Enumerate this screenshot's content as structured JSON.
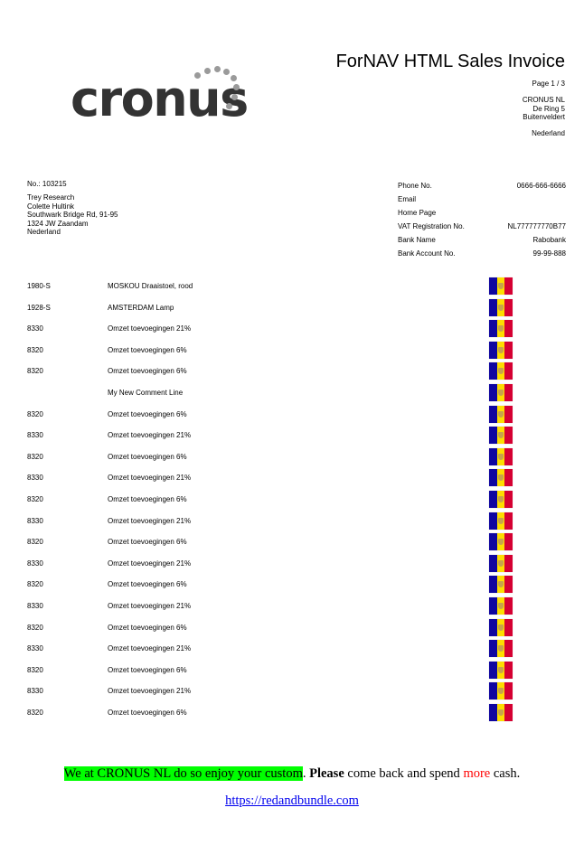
{
  "header": {
    "title": "ForNAV HTML Sales Invoice",
    "page": "Page 1 / 3",
    "logo_text": "cronus"
  },
  "company": {
    "name": "CRONUS NL",
    "address": "De Ring 5",
    "city": "Buitenveldert",
    "country": "Nederland"
  },
  "invoice": {
    "number_label": "No.: 103215"
  },
  "customer": {
    "name": "Trey Research",
    "contact": "Colette Hultink",
    "address": "Southwark Bridge Rd, 91-95",
    "postcode_city": "1324 JW Zaandam",
    "country": "Nederland"
  },
  "company_info": [
    {
      "label": "Phone No.",
      "value": "0666-666-6666"
    },
    {
      "label": "Email",
      "value": ""
    },
    {
      "label": "Home Page",
      "value": ""
    },
    {
      "label": "VAT Registration No.",
      "value": "NL777777770B77"
    },
    {
      "label": "Bank Name",
      "value": "Rabobank"
    },
    {
      "label": "Bank Account No.",
      "value": "99-99-888"
    }
  ],
  "lines": [
    {
      "no": "1980-S",
      "description": "MOSKOU Draaistoel, rood",
      "flag": "andorra-flag"
    },
    {
      "no": "1928-S",
      "description": "AMSTERDAM Lamp",
      "flag": "andorra-flag"
    },
    {
      "no": "8330",
      "description": "Omzet toevoegingen 21%",
      "flag": "andorra-flag"
    },
    {
      "no": "8320",
      "description": "Omzet toevoegingen 6%",
      "flag": "andorra-flag"
    },
    {
      "no": "8320",
      "description": "Omzet toevoegingen 6%",
      "flag": "andorra-flag"
    },
    {
      "no": "",
      "description": "My New Comment Line",
      "flag": "andorra-flag"
    },
    {
      "no": "8320",
      "description": "Omzet toevoegingen 6%",
      "flag": "andorra-flag"
    },
    {
      "no": "8330",
      "description": "Omzet toevoegingen 21%",
      "flag": "andorra-flag"
    },
    {
      "no": "8320",
      "description": "Omzet toevoegingen 6%",
      "flag": "andorra-flag"
    },
    {
      "no": "8330",
      "description": "Omzet toevoegingen 21%",
      "flag": "andorra-flag"
    },
    {
      "no": "8320",
      "description": "Omzet toevoegingen 6%",
      "flag": "andorra-flag"
    },
    {
      "no": "8330",
      "description": "Omzet toevoegingen 21%",
      "flag": "andorra-flag"
    },
    {
      "no": "8320",
      "description": "Omzet toevoegingen 6%",
      "flag": "andorra-flag"
    },
    {
      "no": "8330",
      "description": "Omzet toevoegingen 21%",
      "flag": "andorra-flag"
    },
    {
      "no": "8320",
      "description": "Omzet toevoegingen 6%",
      "flag": "andorra-flag"
    },
    {
      "no": "8330",
      "description": "Omzet toevoegingen 21%",
      "flag": "andorra-flag"
    },
    {
      "no": "8320",
      "description": "Omzet toevoegingen 6%",
      "flag": "andorra-flag"
    },
    {
      "no": "8330",
      "description": "Omzet toevoegingen 21%",
      "flag": "andorra-flag"
    },
    {
      "no": "8320",
      "description": "Omzet toevoegingen 6%",
      "flag": "andorra-flag"
    },
    {
      "no": "8330",
      "description": "Omzet toevoegingen 21%",
      "flag": "andorra-flag"
    },
    {
      "no": "8320",
      "description": "Omzet toevoegingen 6%",
      "flag": "andorra-flag"
    }
  ],
  "footer": {
    "highlight_text": "We at CRONUS NL do so enjoy your custom",
    "period": ". ",
    "bold_text": "Please",
    "mid_text": " come back and spend ",
    "red_text": "more",
    "end_text": " cash.",
    "link": "https://redandbundle.com"
  },
  "colors": {
    "highlight": "#00ff00",
    "accent_red": "#ff0000",
    "link": "#0000ee"
  }
}
